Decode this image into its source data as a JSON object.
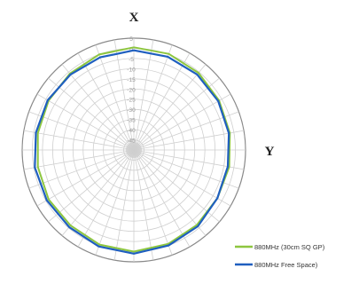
{
  "chart_data": {
    "type": "line",
    "subtype": "polar",
    "axis_labels": {
      "top": "X",
      "right": "Y"
    },
    "radial_tick_labels": [
      "5",
      "0",
      "-5",
      "-10",
      "-15",
      "-20",
      "-25",
      "-30",
      "-35",
      "-40",
      "-45"
    ],
    "radial_range": [
      -50,
      5
    ],
    "angular_divisions": 36,
    "grid": true,
    "legend_position": "bottom-right",
    "series": [
      {
        "name": "880MHz (30cm SQ GP)",
        "color": "#8dc63f",
        "angles": [
          0,
          20,
          40,
          60,
          80,
          100,
          120,
          140,
          160,
          180,
          200,
          220,
          240,
          260,
          280,
          300,
          320,
          340
        ],
        "values": [
          0.5,
          0.3,
          -0.5,
          -1.5,
          -2.0,
          -2.3,
          -2.5,
          -1.8,
          -0.8,
          0.0,
          -0.5,
          -1.5,
          -1.5,
          -2.0,
          -2.0,
          -1.5,
          -1.0,
          0.0
        ]
      },
      {
        "name": "880MHz  Free Space)",
        "color": "#1f5fbf",
        "angles": [
          0,
          20,
          40,
          60,
          80,
          100,
          120,
          140,
          160,
          180,
          200,
          220,
          240,
          260,
          280,
          300,
          320,
          340
        ],
        "values": [
          -1.0,
          -1.2,
          -1.5,
          -2.0,
          -2.5,
          -3.0,
          -2.5,
          -1.0,
          0.0,
          1.0,
          0.5,
          -0.5,
          -0.5,
          -0.5,
          -1.0,
          -1.0,
          -1.5,
          -1.5
        ]
      }
    ]
  }
}
